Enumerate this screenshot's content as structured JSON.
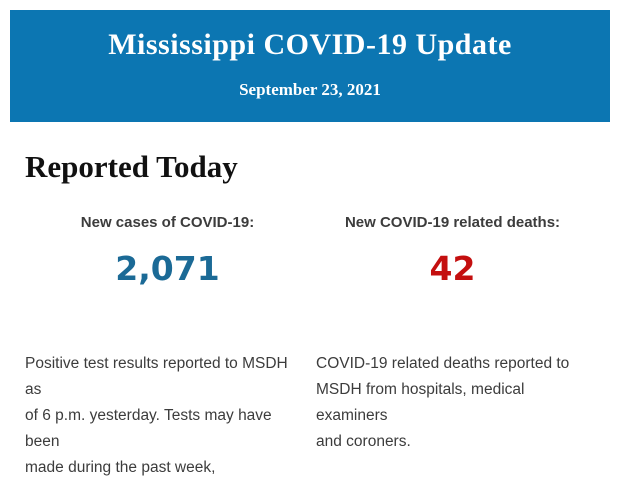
{
  "banner": {
    "title": "Mississippi COVID-19 Update",
    "date": "September 23, 2021",
    "bg_color": "#0c76b2",
    "text_color": "#ffffff"
  },
  "section": {
    "heading": "Reported Today"
  },
  "stats": {
    "cases": {
      "label": "New cases of COVID-19:",
      "value": "2,071",
      "value_color": "#1b6a96",
      "description_lines": [
        "Positive test results reported to MSDH as",
        "of 6 p.m. yesterday. Tests may have been",
        "made during the past week,"
      ]
    },
    "deaths": {
      "label": "New COVID-19 related deaths:",
      "value": "42",
      "value_color": "#c40f0f",
      "description_lines": [
        "COVID-19 related deaths reported to",
        "MSDH from hospitals, medical examiners",
        "and coroners."
      ]
    }
  }
}
